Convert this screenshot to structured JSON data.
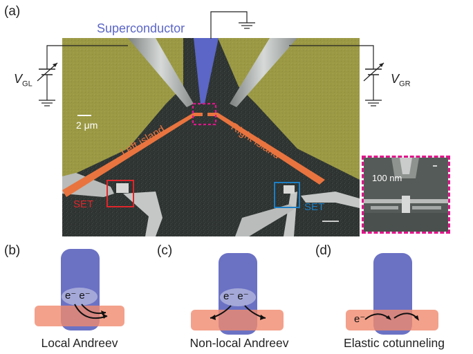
{
  "panels": {
    "a": "(a)",
    "b": "(b)",
    "c": "(c)",
    "d": "(d)"
  },
  "micrograph": {
    "superconductor_label": "Superconductor",
    "left_gate_V": "V",
    "left_gate_sub": "GL",
    "right_gate_V": "V",
    "right_gate_sub": "GR",
    "scale_bar": "2 μm",
    "left_island": "Left island",
    "right_island": "Right island",
    "set_left": "SET",
    "set_right": "SET",
    "inset_scale": "100 nm"
  },
  "schematics": {
    "b": {
      "electrons": "e⁻ e⁻",
      "caption": "Local Andreev"
    },
    "c": {
      "electrons": "e⁻ e⁻",
      "caption": "Non-local Andreev"
    },
    "d": {
      "electron": "e⁻",
      "caption": "Elastic cotunneling"
    }
  },
  "colors": {
    "superconductor": "#6b72c4",
    "island": "#f08a6e",
    "gate_gold": "#9c9a45",
    "substrate": "#2e3331",
    "set_left_box": "#e0262b",
    "set_right_box": "#1d7fc4",
    "inset_border": "#e0158a"
  }
}
